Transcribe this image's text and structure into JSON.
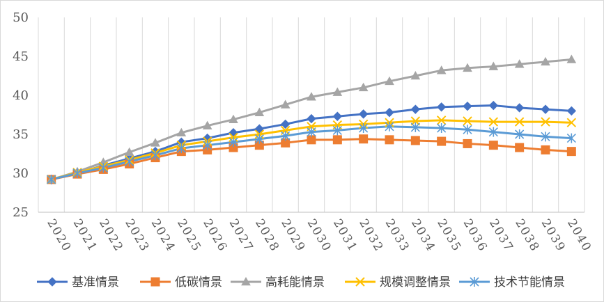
{
  "chart_data": {
    "type": "line",
    "title": "",
    "xlabel": "",
    "ylabel": "",
    "ylim": [
      25,
      50
    ],
    "yticks": [
      25,
      30,
      35,
      40,
      45,
      50
    ],
    "grid": "vertical",
    "legend_position": "bottom",
    "categories": [
      "2020",
      "2021",
      "2022",
      "2023",
      "2024",
      "2025",
      "2026",
      "2027",
      "2028",
      "2029",
      "2030",
      "2031",
      "2032",
      "2033",
      "2034",
      "2035",
      "2036",
      "2037",
      "2038",
      "2039",
      "2040"
    ],
    "series": [
      {
        "name": "基准情景",
        "color": "#4472C4",
        "marker": "diamond",
        "values": [
          29.2,
          30.0,
          31.0,
          31.9,
          32.8,
          34.0,
          34.5,
          35.2,
          35.7,
          36.3,
          37.0,
          37.3,
          37.6,
          37.8,
          38.2,
          38.5,
          38.6,
          38.7,
          38.4,
          38.2,
          38.0
        ]
      },
      {
        "name": "低碳情景",
        "color": "#ED7D31",
        "marker": "square",
        "values": [
          29.2,
          29.9,
          30.5,
          31.2,
          32.0,
          32.8,
          33.0,
          33.3,
          33.6,
          33.9,
          34.3,
          34.3,
          34.4,
          34.3,
          34.2,
          34.1,
          33.8,
          33.6,
          33.3,
          33.0,
          32.8
        ]
      },
      {
        "name": "高耗能情景",
        "color": "#A5A5A5",
        "marker": "triangle",
        "values": [
          29.2,
          30.2,
          31.4,
          32.7,
          33.9,
          35.2,
          36.1,
          36.9,
          37.8,
          38.8,
          39.8,
          40.4,
          41.0,
          41.8,
          42.5,
          43.2,
          43.5,
          43.7,
          44.0,
          44.3,
          44.6
        ]
      },
      {
        "name": "规模调整情景",
        "color": "#FFC000",
        "marker": "x",
        "values": [
          29.2,
          30.1,
          30.9,
          31.7,
          32.6,
          33.6,
          34.1,
          34.6,
          35.0,
          35.5,
          36.0,
          36.2,
          36.3,
          36.5,
          36.7,
          36.8,
          36.7,
          36.6,
          36.6,
          36.6,
          36.5
        ]
      },
      {
        "name": "技术节能情景",
        "color": "#5B9BD5",
        "marker": "star",
        "values": [
          29.2,
          30.0,
          30.7,
          31.5,
          32.3,
          33.2,
          33.6,
          34.0,
          34.4,
          34.8,
          35.3,
          35.5,
          35.8,
          36.0,
          35.9,
          35.8,
          35.6,
          35.3,
          35.0,
          34.7,
          34.5
        ]
      }
    ]
  }
}
